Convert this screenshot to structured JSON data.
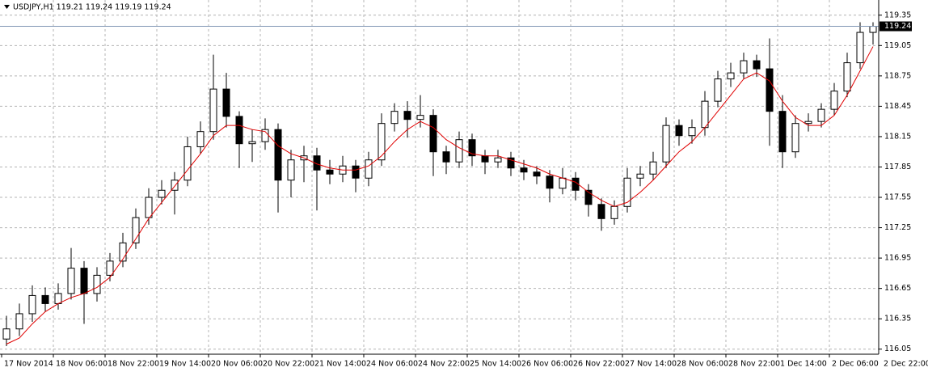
{
  "chart_data": {
    "type": "candlestick",
    "title": "USDJPY,H1  119.21 119.24 119.19 119.24",
    "open": [
      116.15,
      116.25,
      116.4,
      116.58,
      116.5,
      116.6,
      116.85,
      116.6,
      116.78,
      116.92,
      117.1,
      117.35,
      117.55,
      117.62,
      117.72,
      118.05,
      118.2,
      118.62,
      118.35,
      118.08,
      118.1,
      118.22,
      117.72,
      117.92,
      117.96,
      117.82,
      117.78,
      117.86,
      117.74,
      117.92,
      118.28,
      118.4,
      118.32,
      118.36,
      118.0,
      117.9,
      118.12,
      117.96,
      117.9,
      117.94,
      117.84,
      117.8,
      117.76,
      117.64,
      117.74,
      117.62,
      117.48,
      117.34,
      117.46,
      117.74,
      117.78,
      117.9,
      118.26,
      118.16,
      118.24,
      118.5,
      118.72,
      118.78,
      118.9,
      118.82,
      118.4,
      118.0,
      118.28,
      118.3,
      118.42,
      118.6,
      118.88,
      119.18
    ],
    "high": [
      116.38,
      116.5,
      116.68,
      116.66,
      116.7,
      117.05,
      116.92,
      116.86,
      117.0,
      117.2,
      117.44,
      117.64,
      117.72,
      117.8,
      118.15,
      118.3,
      118.96,
      118.78,
      118.4,
      118.22,
      118.33,
      118.28,
      118.02,
      118.06,
      118.04,
      117.92,
      117.96,
      117.92,
      118.0,
      118.38,
      118.48,
      118.5,
      118.56,
      118.42,
      118.06,
      118.2,
      118.18,
      118.02,
      118.02,
      118.0,
      117.92,
      117.86,
      117.82,
      117.84,
      117.8,
      117.68,
      117.54,
      117.52,
      117.84,
      117.86,
      118.0,
      118.34,
      118.32,
      118.32,
      118.6,
      118.8,
      118.88,
      118.98,
      118.96,
      119.12,
      118.56,
      118.36,
      118.38,
      118.48,
      118.68,
      118.98,
      119.28,
      119.28
    ],
    "low": [
      116.08,
      116.18,
      116.32,
      116.42,
      116.44,
      116.54,
      116.3,
      116.52,
      116.72,
      116.86,
      117.04,
      117.28,
      117.48,
      117.38,
      117.66,
      117.98,
      118.12,
      118.24,
      117.84,
      117.9,
      118.02,
      117.4,
      117.55,
      117.7,
      117.42,
      117.68,
      117.7,
      117.6,
      117.66,
      117.86,
      118.2,
      118.14,
      118.24,
      117.76,
      117.78,
      117.84,
      117.86,
      117.78,
      117.84,
      117.76,
      117.72,
      117.68,
      117.5,
      117.58,
      117.52,
      117.36,
      117.22,
      117.28,
      117.4,
      117.66,
      117.72,
      117.84,
      118.06,
      118.08,
      118.16,
      118.44,
      118.64,
      118.72,
      118.74,
      118.06,
      117.84,
      117.94,
      118.2,
      118.24,
      118.36,
      118.54,
      118.82,
      119.06
    ],
    "close": [
      116.25,
      116.4,
      116.58,
      116.5,
      116.6,
      116.85,
      116.6,
      116.78,
      116.92,
      117.1,
      117.35,
      117.55,
      117.62,
      117.72,
      118.05,
      118.2,
      118.62,
      118.35,
      118.08,
      118.1,
      118.22,
      117.72,
      117.92,
      117.96,
      117.82,
      117.78,
      117.86,
      117.74,
      117.92,
      118.28,
      118.4,
      118.32,
      118.36,
      118.0,
      117.9,
      118.12,
      117.96,
      117.9,
      117.94,
      117.84,
      117.8,
      117.76,
      117.64,
      117.74,
      117.62,
      117.48,
      117.34,
      117.46,
      117.74,
      117.78,
      117.9,
      118.26,
      118.16,
      118.24,
      118.5,
      118.72,
      118.78,
      118.9,
      118.82,
      118.4,
      118.0,
      118.28,
      118.3,
      118.42,
      118.6,
      118.88,
      119.18,
      119.24
    ],
    "ma": {
      "color": "#e00000",
      "values": [
        116.1,
        116.16,
        116.3,
        116.42,
        116.5,
        116.56,
        116.6,
        116.66,
        116.76,
        116.94,
        117.14,
        117.34,
        117.5,
        117.66,
        117.82,
        117.98,
        118.16,
        118.26,
        118.26,
        118.22,
        118.2,
        118.06,
        117.98,
        117.94,
        117.88,
        117.84,
        117.82,
        117.82,
        117.86,
        117.96,
        118.1,
        118.22,
        118.3,
        118.24,
        118.12,
        118.04,
        117.98,
        117.96,
        117.96,
        117.92,
        117.88,
        117.84,
        117.78,
        117.74,
        117.7,
        117.6,
        117.52,
        117.46,
        117.5,
        117.6,
        117.72,
        117.86,
        118.0,
        118.1,
        118.24,
        118.4,
        118.56,
        118.72,
        118.78,
        118.7,
        118.5,
        118.34,
        118.26,
        118.26,
        118.36,
        118.56,
        118.8,
        119.04
      ]
    },
    "up_color": "#ffffff",
    "down_color": "#000000",
    "ylim": [
      116.0,
      119.5
    ],
    "yticks": [
      119.35,
      119.05,
      118.75,
      118.45,
      118.15,
      117.85,
      117.55,
      117.25,
      116.95,
      116.65,
      116.35,
      116.05
    ],
    "xticks": [
      {
        "value": 0,
        "label": "17 Nov 2014"
      },
      {
        "value": 4,
        "label": "18 Nov 06:00"
      },
      {
        "value": 8,
        "label": "18 Nov 22:00"
      },
      {
        "value": 12,
        "label": "19 Nov 14:00"
      },
      {
        "value": 16,
        "label": "20 Nov 06:00"
      },
      {
        "value": 20,
        "label": "20 Nov 22:00"
      },
      {
        "value": 24,
        "label": "21 Nov 14:00"
      },
      {
        "value": 28,
        "label": "24 Nov 06:00"
      },
      {
        "value": 32,
        "label": "24 Nov 22:00"
      },
      {
        "value": 36,
        "label": "25 Nov 14:00"
      },
      {
        "value": 40,
        "label": "26 Nov 06:00"
      },
      {
        "value": 44,
        "label": "26 Nov 22:00"
      },
      {
        "value": 48,
        "label": "27 Nov 14:00"
      },
      {
        "value": 52,
        "label": "28 Nov 06:00"
      },
      {
        "value": 56,
        "label": "28 Nov 22:00"
      },
      {
        "value": 60,
        "label": "1 Dec 14:00"
      },
      {
        "value": 64,
        "label": "2 Dec 06:00"
      },
      {
        "value": 68,
        "label": "2 Dec 22:00"
      }
    ],
    "grid": true,
    "last_price": 119.24
  }
}
